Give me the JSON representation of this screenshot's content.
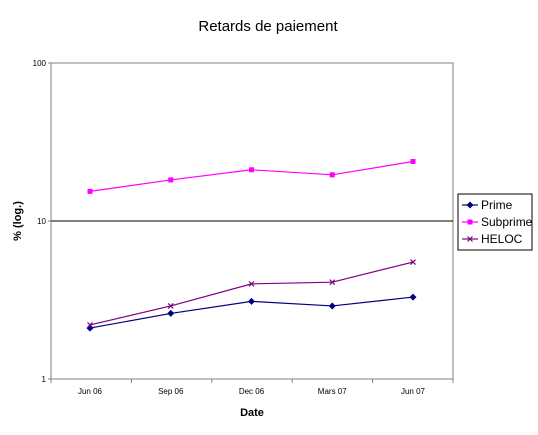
{
  "chart_data": {
    "type": "line",
    "title": "Retards de paiement",
    "xlabel": "Date",
    "ylabel": "% (log.)",
    "y_scale": "log",
    "ylim": [
      1,
      100
    ],
    "y_ticks": [
      "1",
      "10",
      "100"
    ],
    "categories": [
      "Jun 06",
      "Sep 06",
      "Dec 06",
      "Mars 07",
      "Jun 07"
    ],
    "gridlines": "horizontal major lines",
    "legend_position": "right",
    "series": [
      {
        "name": "Prime",
        "color": "#000080",
        "marker": "diamond",
        "values": [
          2.1,
          2.6,
          3.1,
          2.9,
          3.3
        ]
      },
      {
        "name": "Subprime",
        "color": "#ff00ff",
        "marker": "square",
        "values": [
          15.4,
          18.2,
          21.1,
          19.6,
          23.8
        ]
      },
      {
        "name": "HELOC",
        "color": "#800080",
        "marker": "x",
        "values": [
          2.2,
          2.9,
          4.0,
          4.1,
          5.5
        ]
      }
    ]
  }
}
